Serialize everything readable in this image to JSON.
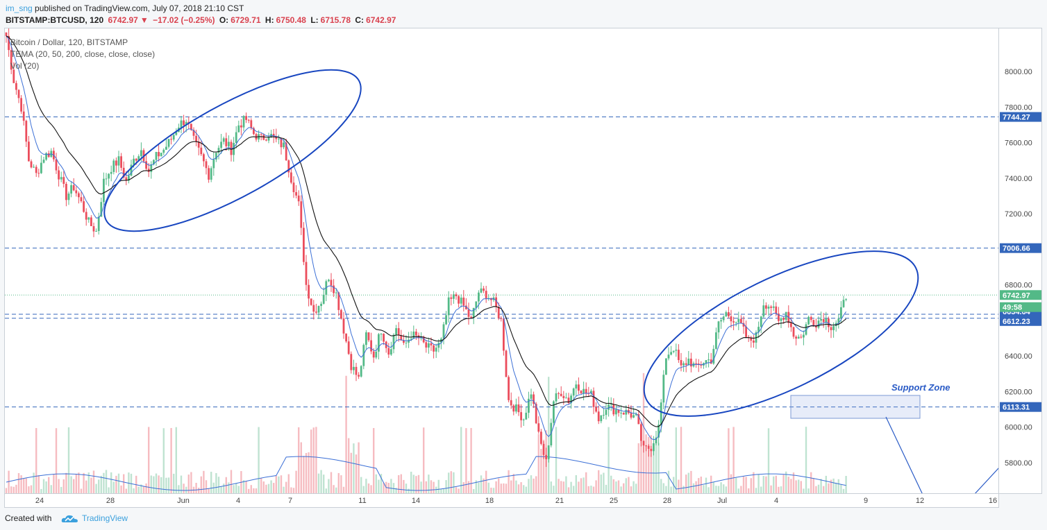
{
  "header": {
    "user": "im_sng",
    "published_text": "published on TradingView.com, July 07, 2018 21:10 CST",
    "symbol": "BITSTAMP:BTCUSD, 120",
    "last": "6742.97",
    "change": "−17.02 (−0.25%)",
    "o_label": "O:",
    "o_value": "6729.71",
    "h_label": "H:",
    "h_value": "6750.48",
    "l_label": "L:",
    "l_value": "6715.78",
    "c_label": "C:",
    "c_value": "6742.97"
  },
  "legend": {
    "line1": "Bitcoin / Dollar, 120, BITSTAMP",
    "line2": "TEMA (20, 50, 200, close, close, close)",
    "line3": "Vol (20)"
  },
  "annotation": {
    "support_label": "Support Zone"
  },
  "footer": {
    "created": "Created with",
    "brand": "TradingView"
  },
  "colors": {
    "up": "#53b987",
    "down": "#eb4d5c",
    "ellipse": "#1846c0",
    "hline": "#3366bb",
    "tema_fast": "#3b6fd6",
    "tema_slow": "#111111",
    "bg": "#ffffff"
  },
  "chart_data": {
    "type": "candlestick",
    "ylim": [
      5650,
      8250
    ],
    "y_ticks": [
      5800,
      6000,
      6200,
      6400,
      6600,
      6800,
      7000,
      7200,
      7400,
      7600,
      7800,
      8000
    ],
    "x_tick_labels": [
      "24",
      "28",
      "Jun",
      "4",
      "7",
      "11",
      "14",
      "18",
      "21",
      "25",
      "28",
      "Jul",
      "4",
      "9",
      "12",
      "16"
    ],
    "price_lines": [
      {
        "value": 7744.27,
        "label": "7744.27"
      },
      {
        "value": 7006.66,
        "label": "7006.66"
      },
      {
        "value": 6634.64,
        "label": "6634.64"
      },
      {
        "value": 6612.23,
        "label": "6612.23"
      },
      {
        "value": 6113.31,
        "label": "6113.31"
      }
    ],
    "last_price": {
      "value": 6742.97,
      "label": "6742.97",
      "countdown": "49:58"
    },
    "anchors": [
      [
        0,
        8200
      ],
      [
        3,
        7950
      ],
      [
        6,
        7800
      ],
      [
        9,
        7500
      ],
      [
        12,
        7420
      ],
      [
        15,
        7520
      ],
      [
        18,
        7550
      ],
      [
        21,
        7420
      ],
      [
        24,
        7300
      ],
      [
        27,
        7350
      ],
      [
        30,
        7260
      ],
      [
        33,
        7150
      ],
      [
        36,
        7100
      ],
      [
        39,
        7380
      ],
      [
        42,
        7460
      ],
      [
        45,
        7500
      ],
      [
        48,
        7380
      ],
      [
        51,
        7500
      ],
      [
        54,
        7560
      ],
      [
        57,
        7440
      ],
      [
        60,
        7520
      ],
      [
        63,
        7560
      ],
      [
        66,
        7620
      ],
      [
        69,
        7700
      ],
      [
        72,
        7730
      ],
      [
        75,
        7610
      ],
      [
        78,
        7520
      ],
      [
        81,
        7420
      ],
      [
        84,
        7560
      ],
      [
        87,
        7610
      ],
      [
        90,
        7560
      ],
      [
        93,
        7700
      ],
      [
        96,
        7730
      ],
      [
        99,
        7650
      ],
      [
        102,
        7620
      ],
      [
        105,
        7650
      ],
      [
        108,
        7610
      ],
      [
        111,
        7580
      ],
      [
        114,
        7400
      ],
      [
        117,
        7250
      ],
      [
        120,
        6800
      ],
      [
        123,
        6650
      ],
      [
        126,
        6710
      ],
      [
        129,
        6850
      ],
      [
        132,
        6750
      ],
      [
        135,
        6550
      ],
      [
        138,
        6350
      ],
      [
        141,
        6270
      ],
      [
        144,
        6520
      ],
      [
        147,
        6400
      ],
      [
        150,
        6550
      ],
      [
        153,
        6420
      ],
      [
        156,
        6560
      ],
      [
        159,
        6450
      ],
      [
        162,
        6520
      ],
      [
        165,
        6500
      ],
      [
        168,
        6450
      ],
      [
        171,
        6430
      ],
      [
        174,
        6480
      ],
      [
        177,
        6700
      ],
      [
        180,
        6740
      ],
      [
        183,
        6680
      ],
      [
        186,
        6600
      ],
      [
        189,
        6760
      ],
      [
        192,
        6750
      ],
      [
        195,
        6700
      ],
      [
        198,
        6600
      ],
      [
        201,
        6150
      ],
      [
        204,
        6100
      ],
      [
        207,
        6050
      ],
      [
        210,
        6200
      ],
      [
        213,
        5950
      ],
      [
        216,
        5800
      ],
      [
        219,
        6150
      ],
      [
        222,
        6200
      ],
      [
        225,
        6150
      ],
      [
        228,
        6250
      ],
      [
        231,
        6200
      ],
      [
        234,
        6180
      ],
      [
        237,
        6050
      ],
      [
        240,
        6120
      ],
      [
        243,
        6100
      ],
      [
        246,
        6090
      ],
      [
        249,
        6080
      ],
      [
        252,
        6050
      ],
      [
        255,
        5870
      ],
      [
        258,
        5890
      ],
      [
        261,
        6000
      ],
      [
        264,
        6400
      ],
      [
        267,
        6450
      ],
      [
        270,
        6330
      ],
      [
        273,
        6380
      ],
      [
        276,
        6330
      ],
      [
        279,
        6370
      ],
      [
        282,
        6380
      ],
      [
        285,
        6580
      ],
      [
        288,
        6640
      ],
      [
        291,
        6610
      ],
      [
        294,
        6570
      ],
      [
        297,
        6480
      ],
      [
        300,
        6510
      ],
      [
        303,
        6700
      ],
      [
        306,
        6680
      ],
      [
        309,
        6590
      ],
      [
        312,
        6650
      ],
      [
        315,
        6520
      ],
      [
        318,
        6500
      ],
      [
        321,
        6610
      ],
      [
        324,
        6590
      ],
      [
        327,
        6620
      ],
      [
        330,
        6570
      ],
      [
        333,
        6600
      ],
      [
        336,
        6740
      ]
    ]
  }
}
